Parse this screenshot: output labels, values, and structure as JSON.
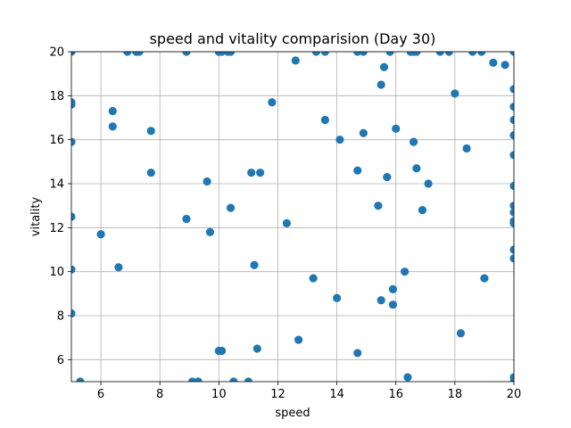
{
  "chart_data": {
    "type": "scatter",
    "title": "speed and vitality comparision (Day 30)",
    "xlabel": "speed",
    "ylabel": "vitality",
    "xlim": [
      5,
      20
    ],
    "ylim": [
      5,
      20
    ],
    "xticks": [
      "6",
      "8",
      "10",
      "12",
      "14",
      "16",
      "18",
      "20"
    ],
    "yticks": [
      "6",
      "8",
      "10",
      "12",
      "14",
      "16",
      "18",
      "20"
    ],
    "grid": true,
    "marker_color": "#1f77b4",
    "series": [
      {
        "x": [
          5.0,
          5.0,
          5.0,
          5.0,
          5.0,
          5.0,
          5.0,
          5.3,
          6.0,
          6.4,
          6.4,
          6.6,
          6.9,
          7.2,
          7.3,
          7.7,
          7.7,
          8.9,
          8.9,
          9.1,
          9.3,
          9.6,
          9.7,
          10.0,
          10.0,
          10.1,
          10.1,
          10.3,
          10.4,
          10.4,
          10.5,
          11.0,
          11.1,
          11.2,
          11.3,
          11.4,
          11.8,
          12.3,
          12.6,
          12.7,
          13.2,
          13.3,
          13.6,
          13.6,
          14.0,
          14.1,
          14.7,
          14.7,
          14.7,
          14.9,
          14.9,
          15.4,
          15.5,
          15.5,
          15.6,
          15.7,
          15.8,
          15.9,
          15.9,
          16.0,
          16.3,
          16.4,
          16.5,
          16.6,
          16.6,
          16.7,
          16.7,
          16.9,
          17.1,
          17.5,
          17.8,
          18.0,
          18.2,
          18.4,
          18.6,
          18.9,
          19.0,
          19.3,
          19.7,
          20.0,
          20.0,
          20.0,
          20.0,
          20.0,
          20.0,
          20.0,
          20.0,
          20.0,
          20.0,
          20.0,
          20.0,
          20.0,
          20.0,
          20.0
        ],
        "y": [
          20.0,
          17.7,
          17.6,
          15.9,
          12.5,
          10.1,
          8.1,
          5.0,
          11.7,
          17.3,
          16.6,
          10.2,
          20.0,
          20.0,
          20.0,
          16.4,
          14.5,
          20.0,
          12.4,
          5.0,
          5.0,
          14.1,
          11.8,
          20.0,
          6.4,
          20.0,
          6.4,
          20.0,
          20.0,
          12.9,
          5.0,
          5.0,
          14.5,
          10.3,
          6.5,
          14.5,
          17.7,
          12.2,
          19.6,
          6.9,
          9.7,
          20.0,
          20.0,
          16.9,
          8.8,
          16.0,
          20.0,
          14.6,
          6.3,
          20.0,
          16.3,
          13.0,
          8.7,
          18.5,
          19.3,
          14.3,
          20.0,
          9.2,
          8.5,
          16.5,
          10.0,
          5.2,
          20.0,
          20.0,
          15.9,
          20.0,
          14.7,
          12.8,
          14.0,
          20.0,
          20.0,
          18.1,
          7.2,
          15.6,
          20.0,
          20.0,
          9.7,
          19.5,
          19.4,
          20.0,
          18.3,
          17.5,
          16.9,
          16.2,
          15.3,
          13.9,
          13.0,
          12.7,
          12.3,
          12.2,
          11.0,
          10.6,
          5.0,
          5.2
        ]
      }
    ]
  }
}
